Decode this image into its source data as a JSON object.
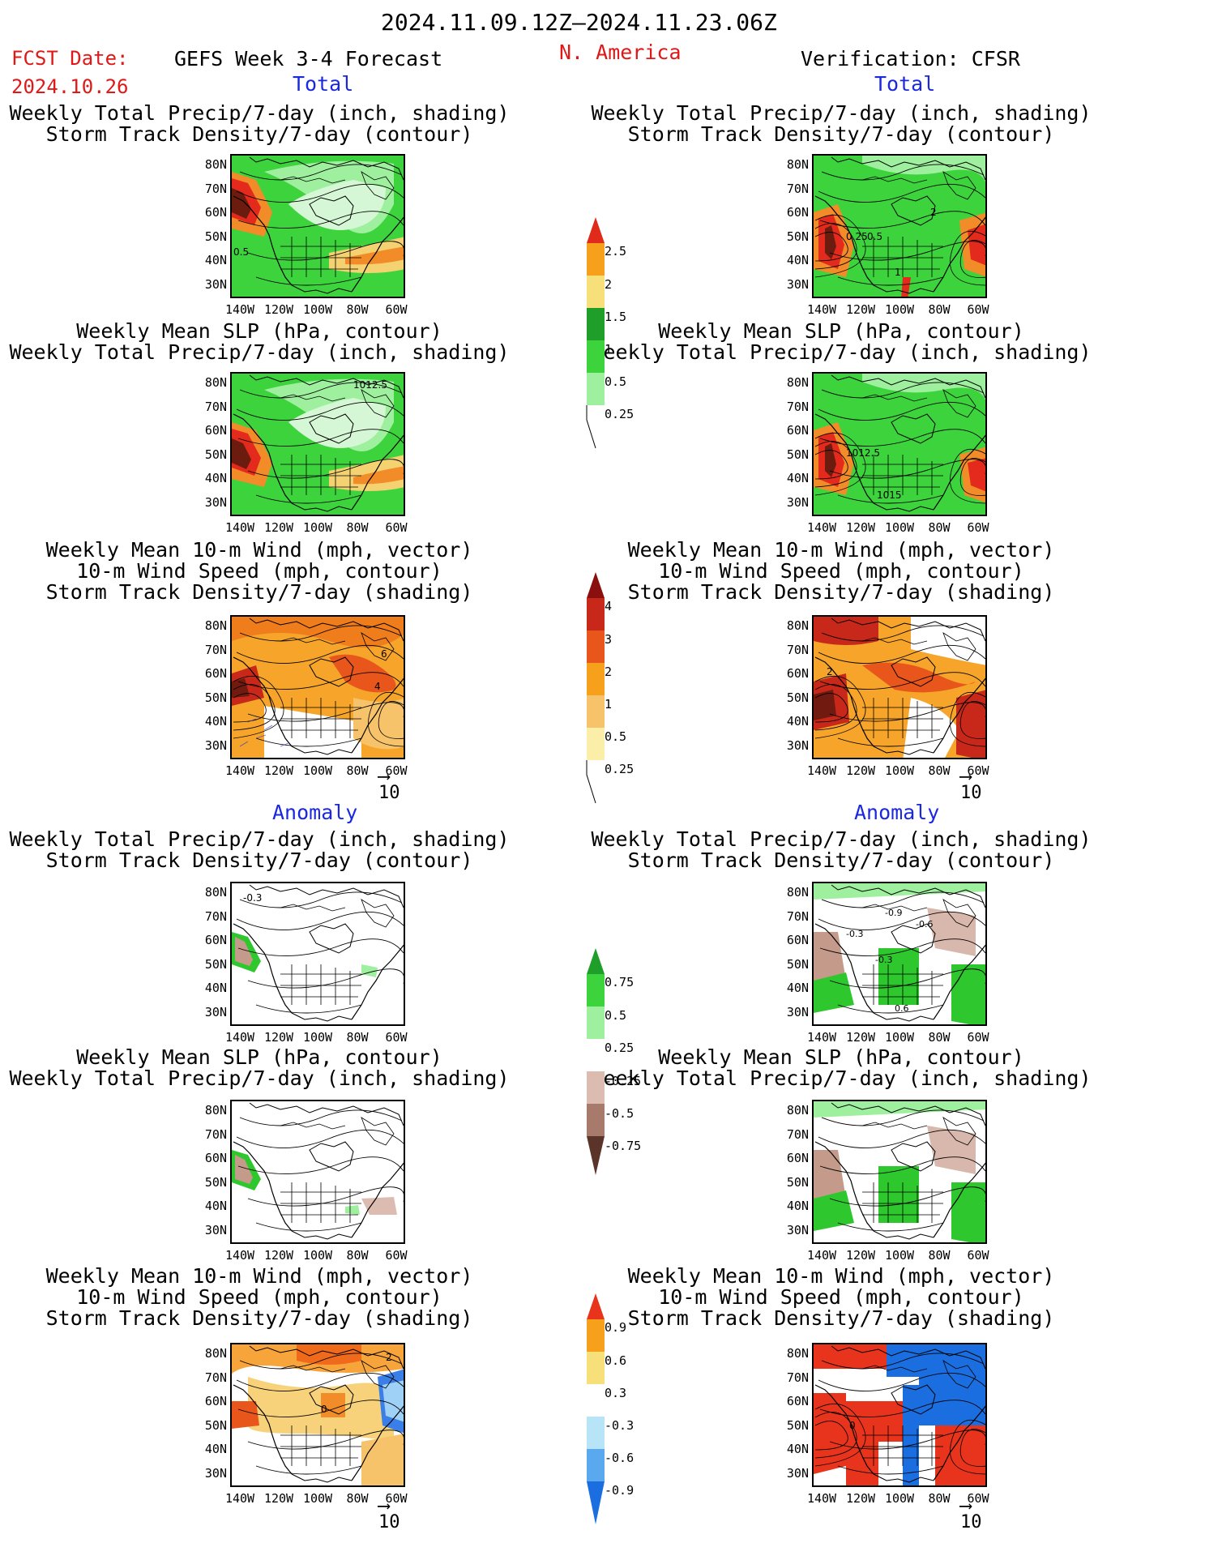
{
  "header": {
    "date_range": "2024.11.09.12Z—2024.11.23.06Z",
    "fcst_label": "FCST Date:",
    "fcst_date": "2024.10.26",
    "forecast_title": "GEFS Week 3-4 Forecast",
    "region": "N. America",
    "verification": "Verification: CFSR"
  },
  "sections": {
    "total": "Total",
    "anomaly": "Anomaly"
  },
  "panels": {
    "precip_storm": [
      "Weekly Total Precip/7-day (inch, shading)",
      "Storm Track Density/7-day (contour)"
    ],
    "slp_precip": [
      "Weekly Mean SLP (hPa, contour)",
      "Weekly Total Precip/7-day (inch, shading)"
    ],
    "wind_storm": [
      "Weekly Mean 10-m Wind (mph, vector)",
      "10-m Wind Speed (mph, contour)",
      "Storm Track Density/7-day (shading)"
    ]
  },
  "axes": {
    "lat_labels": [
      "80N",
      "70N",
      "60N",
      "50N",
      "40N",
      "30N"
    ],
    "lon_labels": [
      "140W",
      "120W",
      "100W",
      "80W",
      "60W"
    ]
  },
  "vector_ref": "10",
  "colorbars": {
    "precip_total": [
      "2.5",
      "2",
      "1.5",
      "1",
      "0.5",
      "0.25"
    ],
    "storm_total": [
      "4",
      "3",
      "2",
      "1",
      "0.5",
      "0.25"
    ],
    "precip_anom": [
      "0.75",
      "0.5",
      "0.25",
      "-0.25",
      "-0.5",
      "-0.75"
    ],
    "storm_anom": [
      "0.9",
      "0.6",
      "0.3",
      "-0.3",
      "-0.6",
      "-0.9"
    ]
  },
  "contour_labels": {
    "fcst_precip_total": "0.5",
    "fcst_slp_total": "1012.5",
    "fcst_wind_total_a": "6",
    "fcst_wind_total_b": "4",
    "ver_precip_total_a": "0.25",
    "ver_precip_total_b": "0.5",
    "ver_precip_total_c": "2",
    "ver_precip_total_d": "1",
    "ver_slp_total_a": "1012.5",
    "ver_slp_total_b": "1015",
    "ver_wind_total": "2",
    "fcst_precip_anom": "-0.3",
    "ver_precip_anom_a": "-0.9",
    "ver_precip_anom_b": "-0.6",
    "ver_precip_anom_c": "-0.3",
    "ver_precip_anom_d": "-0.3",
    "ver_precip_anom_e": "0.6",
    "fcst_wind_anom_a": "2",
    "fcst_wind_anom_b": "0",
    "ver_wind_anom": "0"
  },
  "colors": {
    "title_red": "#e01818",
    "section_blue": "#1a28e0"
  }
}
